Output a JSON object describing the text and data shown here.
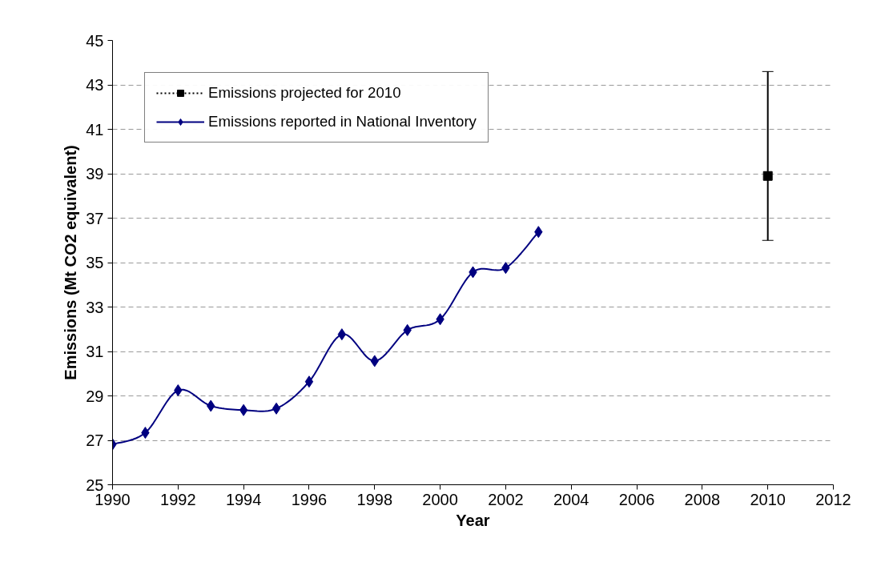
{
  "chart_data": {
    "type": "line",
    "xlabel": "Year",
    "ylabel": "Emissions (Mt CO2 equivalent)",
    "xlim": [
      1990,
      2012
    ],
    "xticks": [
      1990,
      1992,
      1994,
      1996,
      1998,
      2000,
      2002,
      2004,
      2006,
      2008,
      2010,
      2012
    ],
    "ylim": [
      25,
      45
    ],
    "yticks": [
      25,
      27,
      29,
      31,
      33,
      35,
      37,
      39,
      41,
      43,
      45
    ],
    "grid": "y",
    "legend": "top left",
    "series": [
      {
        "name": "Emissions projected for 2010",
        "type": "scatter",
        "color": "#000000",
        "marker": "square",
        "line_style": "dotted",
        "x": [
          2010
        ],
        "values": [
          38.9
        ],
        "errors": [
          [
            36.0,
            43.6
          ]
        ]
      },
      {
        "name": "Emissions reported in National Inventory",
        "color": "#000080",
        "marker": "diamond",
        "line_style": "solid",
        "x": [
          1990,
          1991,
          1992,
          1993,
          1994,
          1995,
          1996,
          1997,
          1998,
          1999,
          2000,
          2001,
          2002,
          2003
        ],
        "values": [
          26.82,
          27.34,
          29.25,
          28.55,
          28.36,
          28.43,
          29.64,
          31.77,
          30.57,
          31.96,
          32.45,
          34.57,
          34.76,
          36.38
        ]
      }
    ]
  }
}
